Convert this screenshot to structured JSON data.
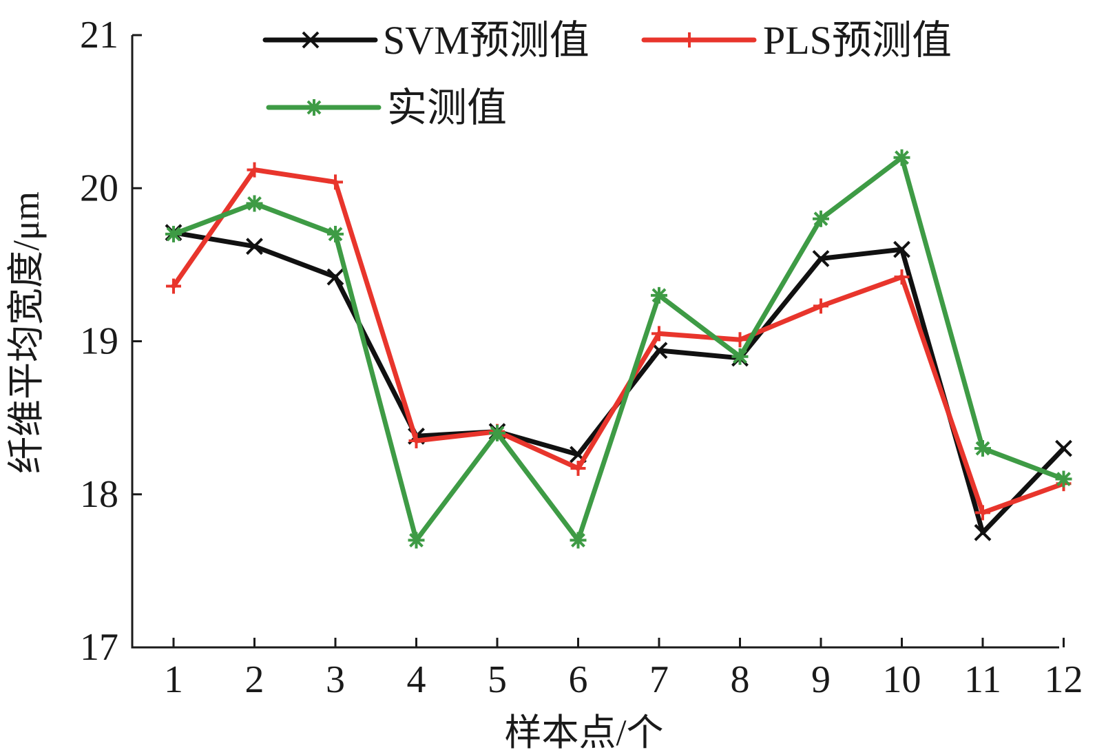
{
  "chart_data": {
    "type": "line",
    "categories": [
      "1",
      "2",
      "3",
      "4",
      "5",
      "6",
      "7",
      "8",
      "9",
      "10",
      "11",
      "12"
    ],
    "x": [
      1,
      2,
      3,
      4,
      5,
      6,
      7,
      8,
      9,
      10,
      11,
      12
    ],
    "series": [
      {
        "name": "SVM预测值",
        "color": "#111111",
        "marker": "x",
        "values": [
          19.71,
          19.62,
          19.42,
          18.38,
          18.41,
          18.26,
          18.94,
          18.89,
          19.54,
          19.6,
          17.75,
          18.3
        ]
      },
      {
        "name": "PLS预测值",
        "color": "#e8352c",
        "marker": "plus",
        "values": [
          19.36,
          20.12,
          20.04,
          18.35,
          18.41,
          18.17,
          19.05,
          19.01,
          19.23,
          19.42,
          17.88,
          18.07
        ]
      },
      {
        "name": "实测值",
        "color": "#3e9b45",
        "marker": "asterisk",
        "values": [
          19.7,
          19.9,
          19.7,
          17.7,
          18.4,
          17.7,
          19.3,
          18.9,
          19.8,
          20.2,
          18.3,
          18.1
        ]
      }
    ],
    "xlabel": "样本点/个",
    "ylabel": "纤维平均宽度/μm",
    "ylim": [
      17,
      21
    ],
    "yticks": [
      "17",
      "18",
      "19",
      "20",
      "21"
    ],
    "grid": false,
    "legend_position": "top"
  }
}
